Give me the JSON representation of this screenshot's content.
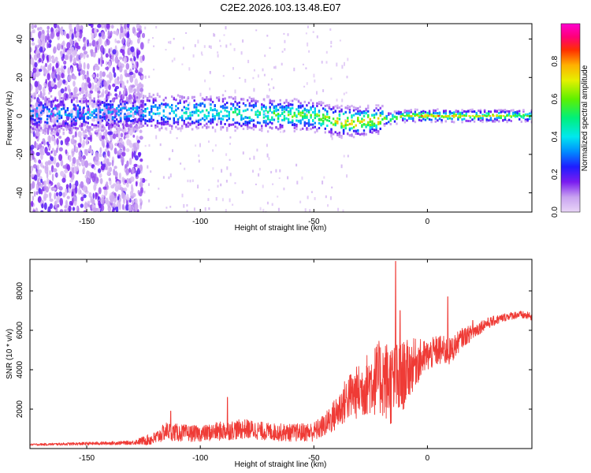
{
  "page_title": "C2E2.2026.103.13.48.E07",
  "colors": {
    "snr_line": "#ef3b36",
    "axis": "#000000",
    "background": "#ffffff"
  },
  "chart_data": [
    {
      "id": "spectrogram",
      "type": "heatmap",
      "xlabel": "Height of straight line (km)",
      "ylabel": "Frequency (Hz)",
      "xlim": [
        -175,
        46
      ],
      "ylim": [
        -50,
        48
      ],
      "xticks": [
        -150,
        -100,
        -50,
        0
      ],
      "xtick_labels": [
        "-150",
        "-100",
        "-50",
        "0"
      ],
      "yticks": [
        -40,
        -20,
        0,
        20,
        40
      ],
      "ytick_labels": [
        "-40",
        "-20",
        "0",
        "20",
        "40"
      ],
      "colorbar": {
        "label": "Normalized spectral amplitude",
        "range": [
          0,
          1
        ],
        "ticks": [
          0.0,
          0.2,
          0.4,
          0.6,
          0.8
        ],
        "tick_labels": [
          "0.0",
          "0.2",
          "0.4",
          "0.6",
          "0.8"
        ],
        "stops": [
          {
            "v": 0.0,
            "color": "#e9d5f7"
          },
          {
            "v": 0.08,
            "color": "#c8a2f0"
          },
          {
            "v": 0.16,
            "color": "#7a1cf0"
          },
          {
            "v": 0.24,
            "color": "#1f1cff"
          },
          {
            "v": 0.32,
            "color": "#008cff"
          },
          {
            "v": 0.4,
            "color": "#00e8ee"
          },
          {
            "v": 0.5,
            "color": "#00f07a"
          },
          {
            "v": 0.6,
            "color": "#5ef000"
          },
          {
            "v": 0.7,
            "color": "#e6f000"
          },
          {
            "v": 0.78,
            "color": "#ffb000"
          },
          {
            "v": 0.86,
            "color": "#ff3000"
          },
          {
            "v": 0.93,
            "color": "#ff0078"
          },
          {
            "v": 1.0,
            "color": "#ff00d0"
          }
        ]
      },
      "ridge": {
        "description_points_height_km": [
          -175,
          -130,
          -100,
          -75,
          -50,
          -40,
          -30,
          -20,
          -10,
          0,
          20,
          46
        ],
        "center_freq_hz": [
          1,
          2,
          2,
          1,
          0,
          -3,
          -3,
          -2,
          0,
          0,
          0,
          0
        ],
        "peak_amplitude": [
          0.35,
          0.35,
          0.45,
          0.5,
          0.6,
          0.75,
          0.75,
          0.7,
          0.6,
          0.7,
          0.65,
          0.55
        ]
      }
    },
    {
      "id": "snr",
      "type": "line",
      "xlabel": "Height of straight line (km)",
      "ylabel": "SNR (10 * v/v)",
      "xlim": [
        -175,
        46
      ],
      "ylim": [
        0,
        9600
      ],
      "xticks": [
        -150,
        -100,
        -50,
        0
      ],
      "xtick_labels": [
        "-150",
        "-100",
        "-50",
        "0"
      ],
      "yticks": [
        2000,
        4000,
        6000,
        8000
      ],
      "ytick_labels": [
        "2000",
        "4000",
        "6000",
        "8000"
      ],
      "series": [
        {
          "name": "SNR",
          "x": [
            -175,
            -150,
            -130,
            -120,
            -115,
            -110,
            -100,
            -90,
            -80,
            -70,
            -60,
            -50,
            -45,
            -40,
            -35,
            -30,
            -25,
            -20,
            -15,
            -12,
            -10,
            -5,
            0,
            5,
            10,
            15,
            20,
            25,
            30,
            35,
            40,
            46
          ],
          "y": [
            200,
            250,
            300,
            500,
            900,
            800,
            750,
            900,
            1000,
            850,
            800,
            850,
            1200,
            1800,
            2600,
            2900,
            3400,
            3600,
            3200,
            3400,
            3800,
            4400,
            4700,
            5000,
            4900,
            5600,
            5900,
            6300,
            6500,
            6700,
            6800,
            6700
          ],
          "noise": [
            50,
            80,
            100,
            350,
            450,
            450,
            400,
            500,
            500,
            450,
            450,
            500,
            600,
            900,
            1200,
            1400,
            1700,
            2000,
            2200,
            2000,
            1700,
            1200,
            800,
            800,
            700,
            500,
            400,
            300,
            250,
            200,
            200,
            200
          ],
          "spikes": [
            {
              "x": -14,
              "y": 9500
            },
            {
              "x": -12,
              "y": 7000
            },
            {
              "x": -88,
              "y": 2600
            },
            {
              "x": -113,
              "y": 1900
            },
            {
              "x": 9,
              "y": 7700
            },
            {
              "x": 6,
              "y": 4900
            },
            {
              "x": 20,
              "y": 6500
            }
          ]
        }
      ]
    }
  ]
}
